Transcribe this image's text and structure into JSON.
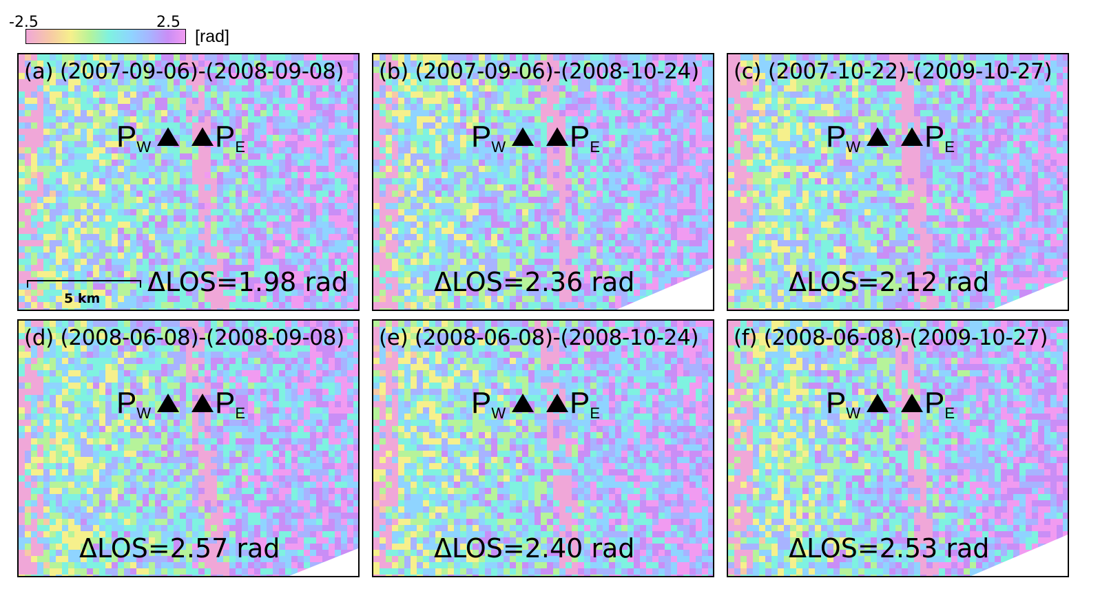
{
  "colorbar": {
    "min_label": "-2.5",
    "max_label": "2.5",
    "unit": "[rad]",
    "colors": [
      "#f0a7d8",
      "#f7c9a6",
      "#f6f08c",
      "#b6f39a",
      "#7ff2e0",
      "#8fd4ff",
      "#a8b3ff",
      "#c98ef6",
      "#f19bf1"
    ]
  },
  "panels": [
    {
      "title": "(a) (2007-09-06)-(2008-09-08)",
      "los": "ΔLOS=1.98 rad"
    },
    {
      "title": "(b) (2007-09-06)-(2008-10-24)",
      "los": "ΔLOS=2.36 rad"
    },
    {
      "title": "(c) (2007-10-22)-(2009-10-27)",
      "los": "ΔLOS=2.12 rad"
    },
    {
      "title": "(d) (2008-06-08)-(2008-09-08)",
      "los": "ΔLOS=2.57 rad"
    },
    {
      "title": "(e) (2008-06-08)-(2008-10-24)",
      "los": "ΔLOS=2.40 rad"
    },
    {
      "title": "(f) (2008-06-08)-(2009-10-27)",
      "los": "ΔLOS=2.53 rad"
    }
  ],
  "markers": {
    "west": "P",
    "west_sub": "W",
    "east": "P",
    "east_sub": "E"
  },
  "scale": {
    "label": "5 km"
  }
}
